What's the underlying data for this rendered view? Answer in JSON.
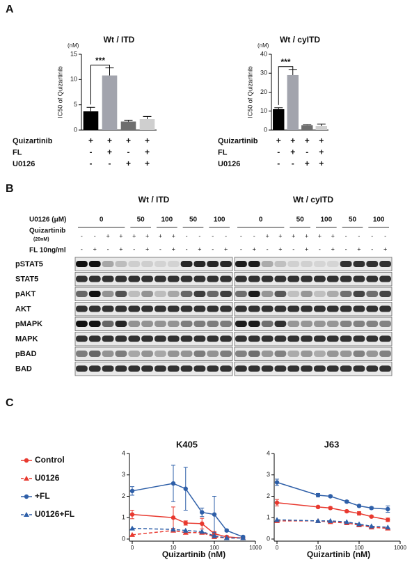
{
  "panels": [
    "A",
    "B",
    "C"
  ],
  "chart_data": [
    {
      "type": "bar",
      "title": "Wt / ITD",
      "y_unit": "(nM)",
      "y_label": "IC50 of Quizartinib",
      "values": [
        3.7,
        10.8,
        1.7,
        2.2
      ],
      "errors": [
        0.8,
        1.5,
        0.2,
        0.5
      ],
      "colors": [
        "#000000",
        "#a2a4ad",
        "#6e6e6e",
        "#cfcfcf"
      ],
      "ylim": [
        0,
        15
      ],
      "yticks": [
        0,
        5,
        10,
        15
      ],
      "annotation": "***",
      "conditions": [
        {
          "label": "Quizartinib",
          "values": [
            "+",
            "+",
            "+",
            "+"
          ]
        },
        {
          "label": "FL",
          "values": [
            "-",
            "+",
            "-",
            "+"
          ]
        },
        {
          "label": "U0126",
          "values": [
            "-",
            "-",
            "+",
            "+"
          ]
        }
      ]
    },
    {
      "type": "bar",
      "title": "Wt / cyITD",
      "y_unit": "(nM)",
      "y_label": "IC50 of Quizartinib",
      "values": [
        11,
        29,
        2.5,
        2.2
      ],
      "errors": [
        0.8,
        3,
        0.3,
        1
      ],
      "colors": [
        "#000000",
        "#a2a4ad",
        "#6e6e6e",
        "#cfcfcf"
      ],
      "ylim": [
        0,
        40
      ],
      "yticks": [
        0,
        10,
        20,
        30,
        40
      ],
      "annotation": "***",
      "conditions": [
        {
          "label": "Quizartinib",
          "values": [
            "+",
            "+",
            "+",
            "+"
          ]
        },
        {
          "label": "FL",
          "values": [
            "-",
            "+",
            "-",
            "+"
          ]
        },
        {
          "label": "U0126",
          "values": [
            "-",
            "-",
            "+",
            "+"
          ]
        }
      ]
    },
    {
      "type": "line",
      "title": "K405",
      "x_label": "Quizartinib (nM)",
      "x_scale": "log",
      "legend": true,
      "x": [
        0,
        10,
        20,
        50,
        100,
        200,
        500
      ],
      "xlim": [
        0,
        1000
      ],
      "xticks": [
        0,
        10,
        100,
        1000
      ],
      "ylim": [
        0,
        4
      ],
      "yticks": [
        0,
        1,
        2,
        3,
        4
      ],
      "series": [
        {
          "name": "Control",
          "color": "#e8392f",
          "marker": "circle",
          "dashed": false,
          "values": [
            1.15,
            1.0,
            0.75,
            0.72,
            0.25,
            0.1,
            0.05
          ],
          "errors": [
            0.2,
            0.5,
            0.1,
            0.25,
            0.1,
            0.05,
            0.05
          ]
        },
        {
          "name": "U0126",
          "color": "#e8392f",
          "marker": "triangle",
          "dashed": true,
          "values": [
            0.2,
            0.4,
            0.3,
            0.3,
            0.1,
            0.05,
            0.05
          ]
        },
        {
          "name": "+FL",
          "color": "#2e5fa8",
          "marker": "circle",
          "dashed": false,
          "values": [
            2.25,
            2.6,
            2.35,
            1.25,
            1.15,
            0.4,
            0.1
          ],
          "errors": [
            0.2,
            0.85,
            1.0,
            0.2,
            0.85,
            0.05,
            0.05
          ]
        },
        {
          "name": "U0126+FL",
          "color": "#2e5fa8",
          "marker": "triangle",
          "dashed": true,
          "values": [
            0.5,
            0.45,
            0.4,
            0.35,
            0.15,
            0.05,
            0.05
          ]
        }
      ]
    },
    {
      "type": "line",
      "title": "J63",
      "x_label": "Quizartinib (nM)",
      "x_scale": "log",
      "legend": false,
      "x": [
        0,
        10,
        20,
        50,
        100,
        200,
        500
      ],
      "xlim": [
        0,
        1000
      ],
      "xticks": [
        0,
        10,
        100,
        1000
      ],
      "ylim": [
        0,
        4
      ],
      "yticks": [
        0,
        1,
        2,
        3,
        4
      ],
      "series": [
        {
          "name": "Control",
          "color": "#e8392f",
          "marker": "circle",
          "dashed": false,
          "values": [
            1.7,
            1.5,
            1.45,
            1.3,
            1.2,
            1.05,
            0.9
          ],
          "errors": [
            0.15,
            0.05,
            0.05,
            0.05,
            0.08,
            0.05,
            0.08
          ]
        },
        {
          "name": "U0126",
          "color": "#e8392f",
          "marker": "triangle",
          "dashed": true,
          "values": [
            0.85,
            0.85,
            0.8,
            0.75,
            0.65,
            0.55,
            0.5
          ]
        },
        {
          "name": "+FL",
          "color": "#2e5fa8",
          "marker": "circle",
          "dashed": false,
          "values": [
            2.65,
            2.05,
            2.0,
            1.75,
            1.55,
            1.45,
            1.4
          ],
          "errors": [
            0.15,
            0.08,
            0.05,
            0.05,
            0.05,
            0.05,
            0.15
          ]
        },
        {
          "name": "U0126+FL",
          "color": "#2e5fa8",
          "marker": "triangle",
          "dashed": true,
          "values": [
            0.9,
            0.85,
            0.85,
            0.8,
            0.7,
            0.6,
            0.55
          ]
        }
      ]
    }
  ],
  "blot": {
    "groups": [
      "Wt / ITD",
      "Wt / cyITD"
    ],
    "u0126_label": "U0126 (μM)",
    "u0126_doses": [
      "0",
      "50",
      "100",
      "50",
      "100"
    ],
    "quizartinib_label": "Quizartinib",
    "quizartinib_sub": "(20nM)",
    "quizartinib": [
      "-",
      "-",
      "+",
      "+",
      "+",
      "+",
      "+",
      "+",
      "-",
      "-",
      "-",
      "-"
    ],
    "fl_label": "FL 10ng/ml",
    "fl": [
      "-",
      "+",
      "-",
      "+",
      "-",
      "+",
      "-",
      "+",
      "-",
      "+",
      "-",
      "+"
    ],
    "proteins": [
      "pSTAT5",
      "STAT5",
      "pAKT",
      "AKT",
      "pMAPK",
      "MAPK",
      "pBAD",
      "BAD"
    ]
  }
}
